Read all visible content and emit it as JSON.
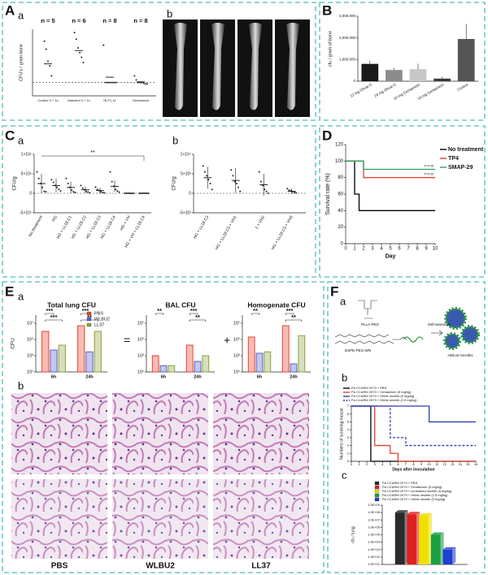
{
  "A": {
    "label": "A",
    "parts": [
      "a",
      "b"
    ],
    "chart": {
      "type": "scatter",
      "ylabel": "CFU's / gram bone",
      "categories": [
        "Control 3 + 1s",
        "Mannitol 3 + 1s",
        "HLF1-11",
        "Gentamicin"
      ],
      "n_labels": [
        "n = 5",
        "n = 6",
        "n = 8",
        "n = 8"
      ],
      "ylim": [
        0,
        100
      ],
      "reference_line": 20,
      "points": [
        [
          82,
          70,
          52,
          45,
          30
        ],
        [
          95,
          85,
          72,
          65,
          58,
          50
        ],
        [
          76,
          20,
          20,
          20,
          20,
          20,
          20,
          20
        ],
        [
          30,
          24,
          20,
          20,
          20,
          19,
          18,
          18
        ]
      ],
      "means": [
        48,
        68,
        28,
        21
      ]
    },
    "xray_labels": [
      "A",
      "B",
      "C",
      "D"
    ]
  },
  "B": {
    "label": "B",
    "chart": {
      "type": "bar",
      "ylabel": "cfu / gram of bone",
      "categories": [
        "12 mg Dhvar-5",
        "24 mg Dhvar-5",
        "10 mg Gentamicin",
        "24 mg Gentamicin",
        "Control"
      ],
      "values": [
        800000,
        520000,
        560000,
        120000,
        1950000
      ],
      "errors": [
        150000,
        100000,
        250000,
        80000,
        700000
      ],
      "colors": [
        "#1a1a1a",
        "#8c8c8c",
        "#c8c8c8",
        "#3a3a3a",
        "#555555"
      ],
      "ylim": [
        0,
        3000000
      ],
      "yticks": [
        0,
        {
          "value": 1000000,
          "label": "1,000,000"
        },
        {
          "value": 2000000,
          "label": "2,000,000"
        },
        {
          "value": 3000000,
          "label": "3,000,000"
        }
      ]
    }
  },
  "C": {
    "label": "C",
    "charts": [
      {
        "type": "scatter",
        "label": "a",
        "ylabel": "CFU/g",
        "categories": [
          "No treatment",
          "HG",
          "HG + LL18 C1",
          "HG + LL18 C2",
          "HG + LL18 C3",
          "HG + LL18 C4",
          "HG + VH",
          "HG + VH + LL18 C4"
        ],
        "ylim": [
          -500000,
          1000000
        ],
        "yticks": [
          {
            "value": -500000,
            "label": "-5×10⁵"
          },
          0,
          {
            "value": 500000,
            "label": "5×10⁵"
          },
          {
            "value": 1000000,
            "label": "1×10⁶"
          }
        ],
        "reference_line": 0,
        "points": [
          [
            550000,
            380000,
            250000,
            150000,
            50000,
            40000
          ],
          [
            350000,
            280000,
            200000,
            150000,
            100000,
            60000
          ],
          [
            380000,
            250000,
            150000,
            80000,
            40000,
            20000
          ],
          [
            200000,
            130000,
            90000,
            50000,
            30000,
            10000
          ],
          [
            160000,
            100000,
            70000,
            40000,
            20000,
            10000
          ],
          [
            550000,
            300000,
            180000,
            100000,
            60000,
            30000
          ],
          [
            0,
            0,
            0,
            0,
            0,
            0
          ],
          [
            0,
            0,
            0,
            0,
            0,
            0
          ]
        ],
        "means": [
          250000,
          200000,
          150000,
          90000,
          70000,
          180000,
          0,
          0
        ],
        "sd": [
          250000,
          180000,
          150000,
          90000,
          70000,
          150000,
          0,
          0
        ],
        "annotation": "**"
      },
      {
        "type": "scatter",
        "label": "b",
        "ylabel": "CFU/g",
        "categories": [
          "HG + LL18 C3",
          "HG + LL18 C3 + VH1",
          "1 + VH2",
          "HG + LL18 C3 + VH3"
        ],
        "ylim": [
          -5000,
          10000
        ],
        "yticks": [
          {
            "value": -5000,
            "label": "-5×10³"
          },
          0,
          {
            "value": 5000,
            "label": "5×10³"
          },
          {
            "value": 10000,
            "label": "1×10⁴"
          }
        ],
        "reference_line": 0,
        "points": [
          [
            7000,
            5500,
            4500,
            3500,
            2500,
            1000
          ],
          [
            6000,
            4500,
            3000,
            2500,
            1500,
            500
          ],
          [
            5500,
            3000,
            2000,
            1000,
            500,
            0
          ],
          [
            1200,
            800,
            600,
            400,
            200,
            100
          ]
        ],
        "means": [
          4000,
          3300,
          2200,
          500
        ],
        "sd": [
          2800,
          3200,
          2800,
          700
        ]
      }
    ]
  },
  "D": {
    "label": "D",
    "chart": {
      "type": "line",
      "ylabel": "Survival rate (%)",
      "xlabel": "Day",
      "xlim": [
        0,
        10
      ],
      "xticks": [
        0,
        1,
        2,
        3,
        4,
        5,
        6,
        7,
        8,
        9,
        10
      ],
      "ylim": [
        0,
        120
      ],
      "yticks": [
        0,
        20,
        40,
        60,
        80,
        100,
        120
      ],
      "legend": "right",
      "annotations": [
        "P<0.05",
        "P<0.05"
      ],
      "series": [
        {
          "name": "No treatment",
          "color": "#000000",
          "x": [
            0,
            1,
            1,
            1.5,
            1.5,
            10
          ],
          "values": [
            100,
            100,
            60,
            60,
            40,
            40
          ]
        },
        {
          "name": "TP4",
          "color": "#e8412c",
          "x": [
            0,
            2,
            2,
            10
          ],
          "values": [
            100,
            100,
            80,
            80
          ]
        },
        {
          "name": "SMAP-29",
          "color": "#2e9e5e",
          "x": [
            0,
            2,
            2,
            10
          ],
          "values": [
            100,
            100,
            90,
            90
          ]
        }
      ]
    }
  },
  "E": {
    "label": "E",
    "parts": [
      "a",
      "b"
    ],
    "operators": [
      "=",
      "+"
    ],
    "charts": [
      {
        "type": "grouped_bar",
        "title": "Total lung CFU",
        "ylabel": "CFU",
        "log": true,
        "categories": [
          "6h",
          "24h"
        ],
        "ylim": [
          10,
          100000000
        ],
        "yticks": [
          {
            "value": 10,
            "label": "10¹"
          },
          {
            "value": 1000,
            "label": "10³"
          },
          {
            "value": 100000,
            "label": "10⁵"
          },
          {
            "value": 10000000,
            "label": "10⁷"
          }
        ],
        "legend": "top-right",
        "series": [
          {
            "name": "PBS",
            "color": "#e8412c",
            "values": [
              1000000,
              5000000
            ]
          },
          {
            "name": "WLBU2",
            "color": "#5a5fc8",
            "values": [
              5000,
              3000
            ]
          },
          {
            "name": "LL37",
            "color": "#8aa33c",
            "values": [
              20000,
              1000000
            ]
          }
        ],
        "annotations": [
          [
            "***",
            "***"
          ],
          [
            "***",
            "**"
          ]
        ]
      },
      {
        "type": "grouped_bar",
        "title": "BAL CFU",
        "log": true,
        "categories": [
          "6h",
          "24h"
        ],
        "ylim": [
          10,
          100000000
        ],
        "yticks": [
          {
            "value": 10,
            "label": "10¹"
          },
          {
            "value": 1000,
            "label": "10³"
          },
          {
            "value": 100000,
            "label": "10⁵"
          },
          {
            "value": 10000000,
            "label": "10⁷"
          }
        ],
        "series": [
          {
            "color": "#e8412c",
            "values": [
              1000,
              20000
            ]
          },
          {
            "color": "#5a5fc8",
            "values": [
              60,
              200
            ]
          },
          {
            "color": "#8aa33c",
            "values": [
              60,
              1000
            ]
          }
        ],
        "annotations": [
          [
            "**"
          ],
          [
            "***",
            "**"
          ]
        ]
      },
      {
        "type": "grouped_bar",
        "title": "Homogenate CFU",
        "log": true,
        "categories": [
          "6h",
          "24h"
        ],
        "ylim": [
          10,
          100000000
        ],
        "yticks": [
          {
            "value": 10,
            "label": "10¹"
          },
          {
            "value": 1000,
            "label": "10³"
          },
          {
            "value": 100000,
            "label": "10⁵"
          },
          {
            "value": 10000000,
            "label": "10⁷"
          }
        ],
        "series": [
          {
            "color": "#e8412c",
            "values": [
              200000,
              5000000
            ]
          },
          {
            "color": "#5a5fc8",
            "values": [
              2000,
              100
            ]
          },
          {
            "color": "#8aa33c",
            "values": [
              3000,
              300000
            ]
          }
        ],
        "annotations": [
          [
            "**"
          ],
          [
            "***",
            "**"
          ]
        ]
      }
    ],
    "micrograph_labels": [
      "PBS",
      "WLBU2",
      "LL37"
    ]
  },
  "F": {
    "label": "F",
    "parts": [
      "a",
      "b",
      "c"
    ],
    "diagram": [
      "PLLA-PEG",
      "DSPE-PEG-WN",
      "Self-assembly",
      "Helical micelles"
    ],
    "chart_b": {
      "type": "line",
      "ylabel": "Numbers of surviving mouse",
      "xlabel": "Days after inoculation",
      "xlim": [
        0,
        16
      ],
      "xticks": [
        0,
        1,
        2,
        3,
        4,
        5,
        6,
        7,
        8,
        9,
        10,
        11,
        12,
        13,
        14,
        15,
        16
      ],
      "ylim": [
        0,
        7
      ],
      "yticks": [
        0,
        1,
        2,
        3,
        4,
        5,
        6,
        7
      ],
      "legend": "top",
      "series": [
        {
          "name": "Pa CCARM 2073 + PBS",
          "color": "#000000",
          "x": [
            0,
            2.5,
            2.5,
            16
          ],
          "values": [
            7,
            7,
            0,
            0
          ]
        },
        {
          "name": "Pa CCARM 2073 + Gentamicin (5 mg/kg)",
          "color": "#e8412c",
          "x": [
            0,
            3,
            3,
            5,
            5,
            6,
            6,
            16
          ],
          "values": [
            7,
            7,
            2,
            2,
            1,
            1,
            0,
            0
          ]
        },
        {
          "name": "Pa CCARM 2073 + HhMc micelle (5 mg/kg)",
          "color": "#2b3fb0",
          "x": [
            0,
            10,
            10,
            16
          ],
          "values": [
            7,
            7,
            5,
            5
          ]
        },
        {
          "name": "Pa CCARM 2073 + HhMc micelle (2.5 mg/kg)",
          "color": "#2b3fb0",
          "dash": true,
          "x": [
            0,
            5,
            5,
            7,
            7,
            16
          ],
          "values": [
            7,
            7,
            3,
            3,
            2,
            2
          ]
        }
      ]
    },
    "chart_c": {
      "type": "grouped_bar",
      "three_d": true,
      "log": true,
      "ylabel": "cfu / lung",
      "categories": [
        null
      ],
      "ylim": [
        10,
        1000000000
      ],
      "legend": "top",
      "yticks": [
        {
          "value": 10,
          "label": "1.0E+01"
        },
        {
          "value": 100,
          "label": "1.0E+02"
        },
        {
          "value": 1000,
          "label": "1.0E+03"
        },
        {
          "value": 10000,
          "label": "1.0E+04"
        },
        {
          "value": 100000,
          "label": "1.0E+05"
        },
        {
          "value": 1000000,
          "label": "1.0E+06"
        },
        {
          "value": 10000000,
          "label": "1.0E+07"
        },
        {
          "value": 100000000,
          "label": "1.0E+08"
        },
        {
          "value": 1000000000,
          "label": "1.0E+09"
        }
      ],
      "series": [
        {
          "name": "Pa CCARM 2073 + PBS",
          "color": "#2a2a2a",
          "values": [
            100000000
          ]
        },
        {
          "name": "Pa CCARM 2073 + Gentamicin (5 mg/kg)",
          "color": "#e02020",
          "values": [
            60000000
          ]
        },
        {
          "name": "Pa CCARM 2073 + scrambled micelle (5 mg/kg)",
          "color": "#f0e000",
          "values": [
            40000000
          ]
        },
        {
          "name": "Pa CCARM 2073 + HhMc micelle (2.5 mg/kg)",
          "color": "#1aa040",
          "values": [
            100000
          ]
        },
        {
          "name": "Pa CCARM 2073 + HhMc micelle (5 mg/kg)",
          "color": "#2040d0",
          "values": [
            1000
          ]
        }
      ]
    }
  }
}
